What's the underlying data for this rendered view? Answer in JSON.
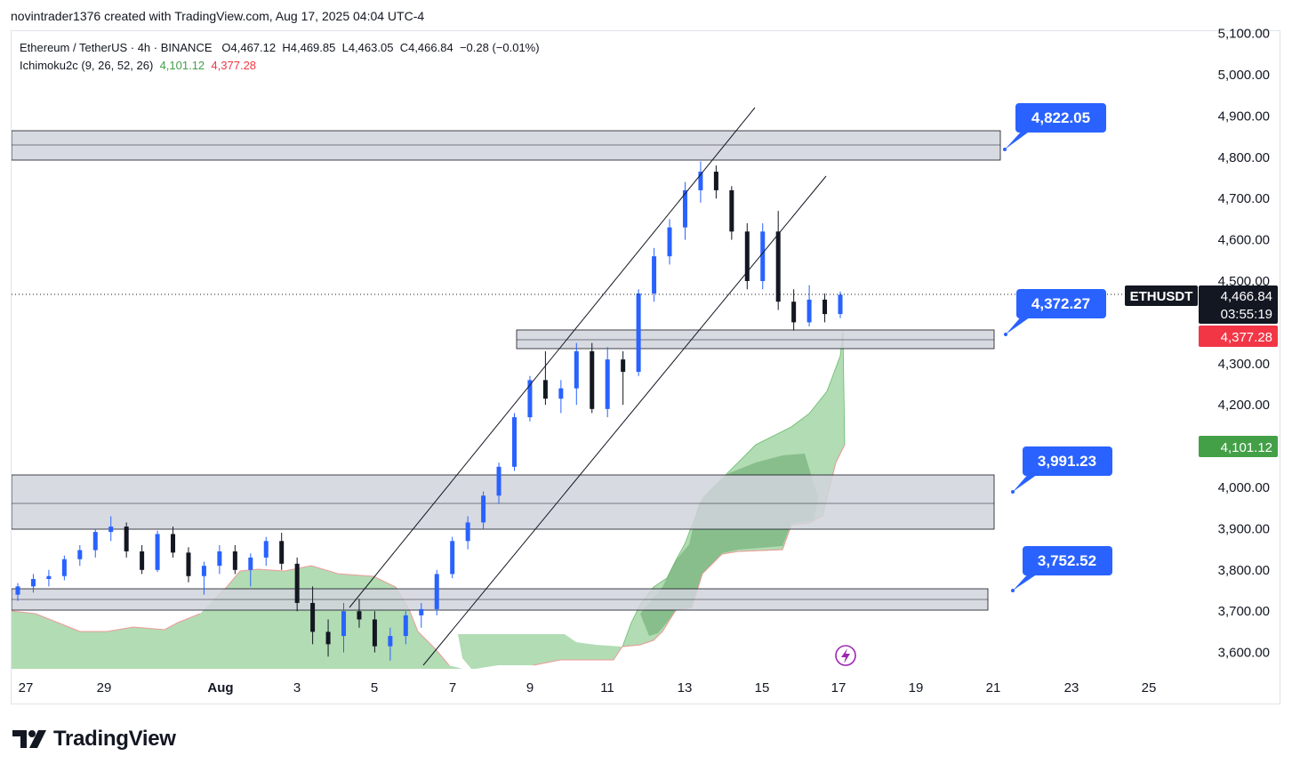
{
  "header": {
    "created_by": "novintrader1376 created with TradingView.com, Aug 17, 2025 04:04 UTC-4"
  },
  "legend": {
    "symbol_line": "Ethereum / TetherUS · 4h · BINANCE",
    "ohlc": {
      "open_label": "O",
      "open": "4,467.12",
      "high_label": "H",
      "high": "4,469.85",
      "low_label": "L",
      "low": "4,463.05",
      "close_label": "C",
      "close": "4,466.84",
      "change": "−0.28 (−0.01%)"
    },
    "indicator_name": "Ichimoku2c (9, 26, 52, 26)",
    "indicator_value_1": "4,101.12",
    "indicator_value_2": "4,377.28"
  },
  "colors": {
    "bull": "#2962ff",
    "bear": "#131722",
    "cloud_bull": "#a5d6a7",
    "cloud_bear_line": "#ef9a9a",
    "zone_fill": "#d1d4dc",
    "callout": "#2962ff",
    "price_red": "#f23645",
    "price_green": "#43a047"
  },
  "price_axis": {
    "ticks": [
      "5,100.00",
      "5,000.00",
      "4,900.00",
      "4,800.00",
      "4,700.00",
      "4,600.00",
      "4,500.00",
      "4,300.00",
      "4,200.00",
      "4,000.00",
      "3,900.00",
      "3,800.00",
      "3,700.00",
      "3,600.00"
    ],
    "tick_values": [
      5100,
      5000,
      4900,
      4800,
      4700,
      4600,
      4500,
      4300,
      4200,
      4000,
      3900,
      3800,
      3700,
      3600
    ]
  },
  "time_axis": {
    "labels": [
      "27",
      "29",
      "Aug",
      "3",
      "5",
      "7",
      "9",
      "11",
      "13",
      "15",
      "17",
      "19",
      "21",
      "23",
      "25"
    ]
  },
  "price_tags": {
    "symbol": "ETHUSDT",
    "last_price": "4,466.84",
    "countdown": "03:55:19",
    "ichimoku_red": "4,377.28",
    "ichimoku_green": "4,101.12"
  },
  "callouts": [
    {
      "label": "4,822.05",
      "value": 4822.05
    },
    {
      "label": "4,372.27",
      "value": 4372.27
    },
    {
      "label": "3,991.23",
      "value": 3991.23
    },
    {
      "label": "3,752.52",
      "value": 3752.52
    }
  ],
  "chart_data": {
    "type": "candlestick",
    "symbol": "ETHUSDT",
    "timeframe": "4h",
    "current_price": 4466.84,
    "zones": [
      {
        "low": 4795,
        "high": 4870
      },
      {
        "low": 4335,
        "high": 4383
      },
      {
        "low": 3898,
        "high": 4030
      },
      {
        "low": 3702,
        "high": 3755
      }
    ],
    "channel": {
      "upper": [
        [
          "Aug 4",
          3700
        ],
        [
          "Aug 14",
          4915
        ]
      ],
      "lower": [
        [
          "Aug 6",
          3590
        ],
        [
          "Aug 17",
          4755
        ]
      ]
    },
    "candles_ohlc": [
      [
        "Jul 27",
        3740,
        3768,
        3725,
        3760
      ],
      [
        "Jul 27",
        3760,
        3790,
        3745,
        3778
      ],
      [
        "Jul 27",
        3778,
        3800,
        3760,
        3785
      ],
      [
        "Jul 28",
        3785,
        3835,
        3775,
        3826
      ],
      [
        "Jul 28",
        3826,
        3860,
        3810,
        3848
      ],
      [
        "Jul 28",
        3848,
        3900,
        3830,
        3892
      ],
      [
        "Jul 28",
        3892,
        3930,
        3870,
        3905
      ],
      [
        "Jul 29",
        3905,
        3915,
        3830,
        3845
      ],
      [
        "Jul 29",
        3845,
        3860,
        3790,
        3800
      ],
      [
        "Jul 29",
        3800,
        3895,
        3795,
        3887
      ],
      [
        "Jul 30",
        3887,
        3905,
        3830,
        3842
      ],
      [
        "Jul 30",
        3842,
        3855,
        3770,
        3785
      ],
      [
        "Jul 30",
        3785,
        3820,
        3740,
        3810
      ],
      [
        "Jul 31",
        3810,
        3860,
        3790,
        3845
      ],
      [
        "Jul 31",
        3845,
        3860,
        3790,
        3800
      ],
      [
        "Jul 31",
        3800,
        3840,
        3760,
        3830
      ],
      [
        "Aug 1",
        3830,
        3880,
        3810,
        3870
      ],
      [
        "Aug 1",
        3870,
        3890,
        3800,
        3815
      ],
      [
        "Aug 1",
        3815,
        3830,
        3700,
        3720
      ],
      [
        "Aug 2",
        3720,
        3760,
        3620,
        3650
      ],
      [
        "Aug 2",
        3650,
        3680,
        3590,
        3620
      ],
      [
        "Aug 4",
        3640,
        3720,
        3600,
        3700
      ],
      [
        "Aug 4",
        3700,
        3730,
        3660,
        3680
      ],
      [
        "Aug 5",
        3680,
        3700,
        3600,
        3615
      ],
      [
        "Aug 5",
        3615,
        3660,
        3580,
        3640
      ],
      [
        "Aug 6",
        3640,
        3700,
        3620,
        3690
      ],
      [
        "Aug 6",
        3690,
        3720,
        3660,
        3705
      ],
      [
        "Aug 7",
        3705,
        3800,
        3690,
        3790
      ],
      [
        "Aug 7",
        3790,
        3880,
        3780,
        3870
      ],
      [
        "Aug 8",
        3870,
        3930,
        3850,
        3915
      ],
      [
        "Aug 8",
        3915,
        3990,
        3900,
        3980
      ],
      [
        "Aug 8",
        3980,
        4060,
        3960,
        4050
      ],
      [
        "Aug 9",
        4050,
        4180,
        4040,
        4170
      ],
      [
        "Aug 9",
        4170,
        4270,
        4160,
        4260
      ],
      [
        "Aug 10",
        4260,
        4330,
        4200,
        4215
      ],
      [
        "Aug 10",
        4215,
        4260,
        4180,
        4240
      ],
      [
        "Aug 11",
        4240,
        4350,
        4200,
        4330
      ],
      [
        "Aug 11",
        4330,
        4350,
        4180,
        4190
      ],
      [
        "Aug 11",
        4190,
        4340,
        4170,
        4310
      ],
      [
        "Aug 12",
        4310,
        4330,
        4200,
        4280
      ],
      [
        "Aug 12",
        4280,
        4480,
        4270,
        4470
      ],
      [
        "Aug 12",
        4470,
        4580,
        4450,
        4560
      ],
      [
        "Aug 13",
        4560,
        4650,
        4540,
        4630
      ],
      [
        "Aug 13",
        4630,
        4740,
        4600,
        4720
      ],
      [
        "Aug 14",
        4720,
        4790,
        4690,
        4765
      ],
      [
        "Aug 14",
        4765,
        4780,
        4700,
        4720
      ],
      [
        "Aug 14",
        4720,
        4730,
        4600,
        4620
      ],
      [
        "Aug 14",
        4620,
        4640,
        4480,
        4500
      ],
      [
        "Aug 15",
        4500,
        4640,
        4480,
        4620
      ],
      [
        "Aug 15",
        4620,
        4670,
        4430,
        4450
      ],
      [
        "Aug 16",
        4450,
        4480,
        4380,
        4400
      ],
      [
        "Aug 16",
        4400,
        4490,
        4390,
        4455
      ],
      [
        "Aug 17",
        4455,
        4470,
        4400,
        4420
      ],
      [
        "Aug 17",
        4420,
        4475,
        4410,
        4467
      ]
    ]
  }
}
